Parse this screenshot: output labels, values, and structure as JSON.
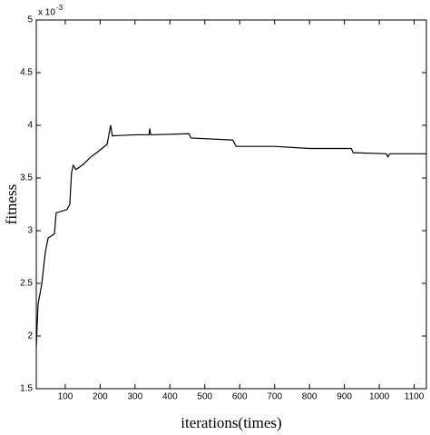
{
  "chart_data": {
    "type": "line",
    "xlabel": "iterations(times)",
    "ylabel": "fitness",
    "y_scale_base": "x 10",
    "y_scale_exponent": "-3",
    "x": [
      17,
      22,
      33,
      43,
      51,
      69,
      74,
      105,
      113,
      118,
      123,
      131,
      152,
      173,
      194,
      220,
      230,
      235,
      300,
      340,
      342,
      345,
      455,
      460,
      580,
      590,
      700,
      800,
      920,
      925,
      1020,
      1025,
      1030,
      1135
    ],
    "series": [
      {
        "name": "fitness",
        "color": "#000000",
        "values": [
          1.9,
          2.3,
          2.5,
          2.8,
          2.93,
          2.97,
          3.17,
          3.2,
          3.25,
          3.55,
          3.62,
          3.58,
          3.63,
          3.7,
          3.75,
          3.82,
          4.0,
          3.9,
          3.91,
          3.91,
          3.97,
          3.91,
          3.92,
          3.88,
          3.86,
          3.8,
          3.8,
          3.78,
          3.78,
          3.74,
          3.73,
          3.7,
          3.73,
          3.73
        ]
      }
    ],
    "xlim": [
      17,
      1135
    ],
    "ylim": [
      1.5,
      5
    ],
    "xticks": [
      100,
      200,
      300,
      400,
      500,
      600,
      700,
      800,
      900,
      1000,
      1100
    ],
    "yticks": [
      1.5,
      2,
      2.5,
      3,
      3.5,
      4,
      4.5,
      5
    ]
  }
}
